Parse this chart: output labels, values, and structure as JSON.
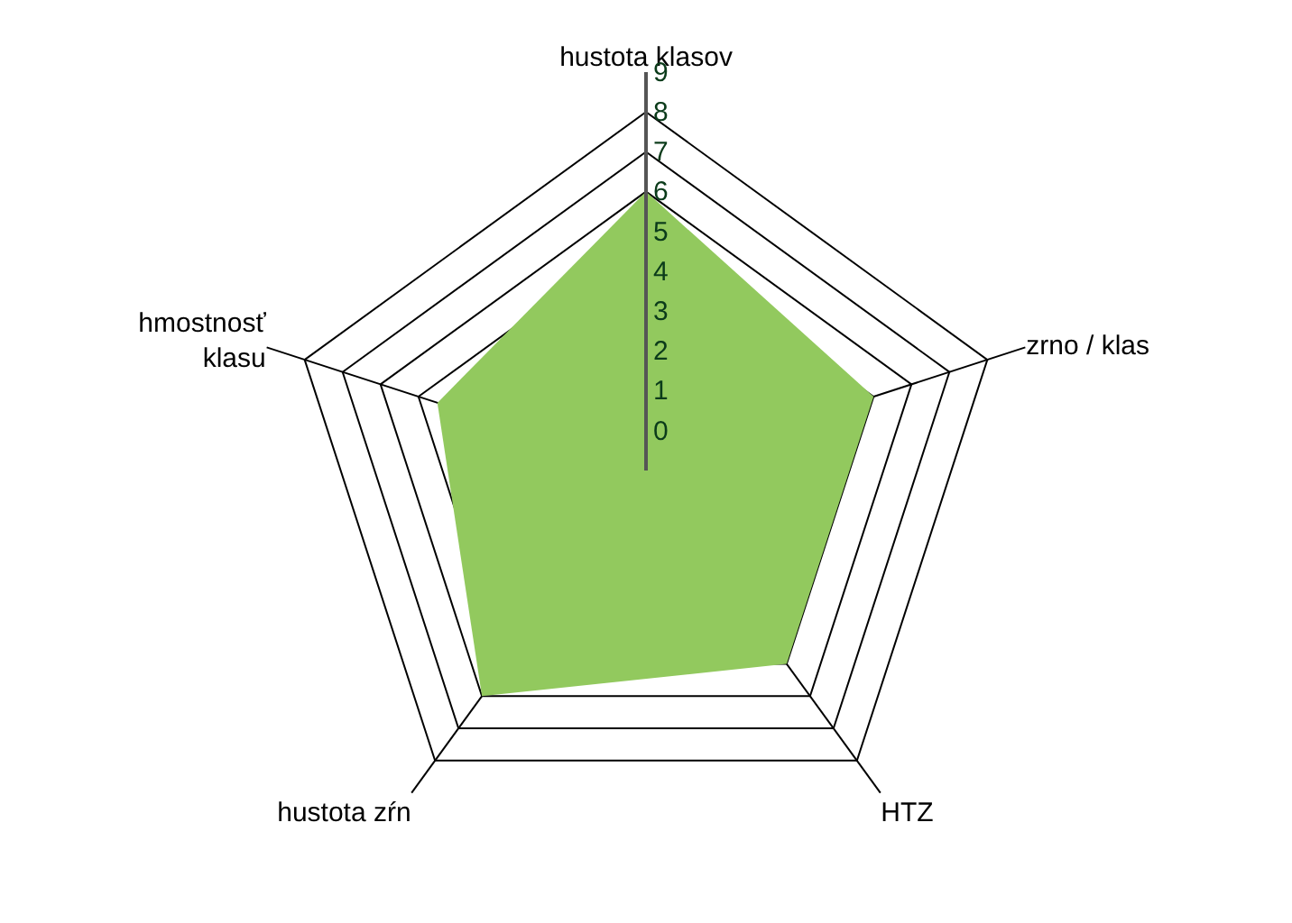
{
  "chart_data": {
    "type": "radar",
    "categories": [
      "hustota klasov",
      "zrno / klas",
      "HTZ",
      "hustota zŕn",
      "hmostnosť\nklasu"
    ],
    "series": [
      {
        "color": "#92c95e",
        "values": [
          6,
          5,
          5,
          6,
          4.5
        ]
      }
    ],
    "ylim": [
      -1,
      9
    ],
    "yticks": [
      0,
      1,
      2,
      3,
      4,
      5,
      6,
      7,
      8,
      9
    ],
    "grid": true
  }
}
